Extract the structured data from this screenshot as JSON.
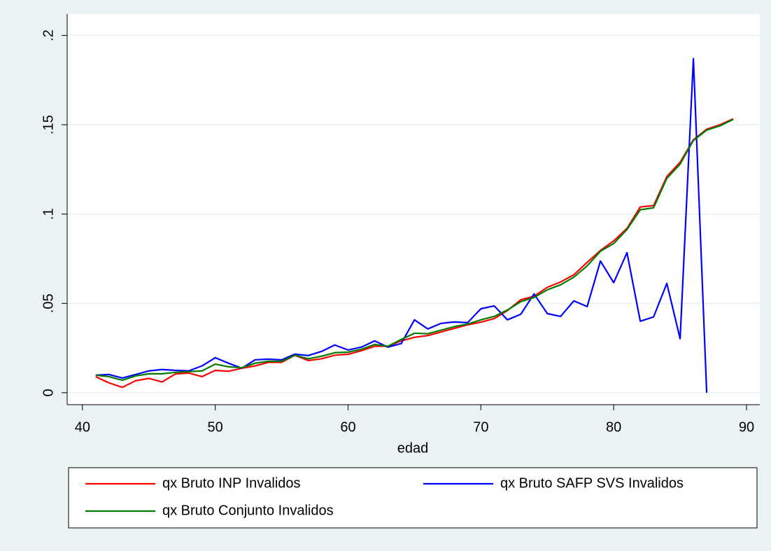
{
  "chart_data": {
    "type": "line",
    "x_label": "edad",
    "x": [
      41,
      42,
      43,
      44,
      45,
      46,
      47,
      48,
      49,
      50,
      51,
      52,
      53,
      54,
      55,
      56,
      57,
      58,
      59,
      60,
      61,
      62,
      63,
      64,
      65,
      66,
      67,
      68,
      69,
      70,
      71,
      72,
      73,
      74,
      75,
      76,
      77,
      78,
      79,
      80,
      81,
      82,
      83,
      84,
      85,
      86,
      87,
      88,
      89
    ],
    "series": [
      {
        "name": "qx Bruto INP Invalidos",
        "color": "#ff0000",
        "values": [
          0.009,
          0.0055,
          0.003,
          0.0067,
          0.008,
          0.006,
          0.0105,
          0.011,
          0.009,
          0.0125,
          0.012,
          0.0137,
          0.015,
          0.017,
          0.017,
          0.021,
          0.018,
          0.019,
          0.021,
          0.0215,
          0.0235,
          0.026,
          0.026,
          0.029,
          0.031,
          0.032,
          0.034,
          0.036,
          0.038,
          0.0395,
          0.0415,
          0.046,
          0.052,
          0.054,
          0.059,
          0.062,
          0.066,
          0.073,
          0.0796,
          0.085,
          0.092,
          0.104,
          0.1047,
          0.121,
          0.129,
          0.1416,
          0.1475,
          0.15,
          0.1533
        ]
      },
      {
        "name": "qx Bruto SAFP SVS Invalidos",
        "color": "#0000ff",
        "values": [
          0.0098,
          0.0102,
          0.0082,
          0.0102,
          0.0122,
          0.013,
          0.0125,
          0.0122,
          0.015,
          0.0196,
          0.0165,
          0.0137,
          0.0184,
          0.0188,
          0.0184,
          0.0216,
          0.0208,
          0.0231,
          0.0267,
          0.0239,
          0.0255,
          0.029,
          0.0255,
          0.0275,
          0.0408,
          0.0357,
          0.0388,
          0.0396,
          0.0392,
          0.047,
          0.0486,
          0.0408,
          0.0439,
          0.0553,
          0.0443,
          0.0427,
          0.0514,
          0.0482,
          0.0737,
          0.0616,
          0.0784,
          0.04,
          0.0424,
          0.0612,
          0.0302,
          0.187,
          0,
          null,
          null
        ]
      },
      {
        "name": "qx Bruto Conjunto Invalidos",
        "color": "#007a00",
        "values": [
          0.0098,
          0.009,
          0.007,
          0.0094,
          0.0106,
          0.0106,
          0.0114,
          0.0118,
          0.0122,
          0.016,
          0.0145,
          0.014,
          0.0165,
          0.0176,
          0.0176,
          0.021,
          0.019,
          0.0204,
          0.0224,
          0.0227,
          0.0243,
          0.027,
          0.026,
          0.0298,
          0.0333,
          0.033,
          0.035,
          0.037,
          0.0384,
          0.0408,
          0.0427,
          0.0463,
          0.051,
          0.0533,
          0.0576,
          0.0604,
          0.0647,
          0.071,
          0.0792,
          0.0835,
          0.0914,
          0.1024,
          0.1035,
          0.12,
          0.128,
          0.1412,
          0.147,
          0.1494,
          0.153
        ]
      }
    ],
    "xlim": [
      38.85,
      91
    ],
    "xticks": [
      40,
      50,
      60,
      70,
      80,
      90
    ],
    "ylim": [
      -0.0067,
      0.212
    ],
    "yticks": [
      0,
      {
        "value": 0.05,
        "label": ".05"
      },
      {
        "value": 0.1,
        "label": ".1"
      },
      {
        "value": 0.15,
        "label": ".15"
      },
      {
        "value": 0.2,
        "label": ".2"
      }
    ],
    "grid": true
  }
}
